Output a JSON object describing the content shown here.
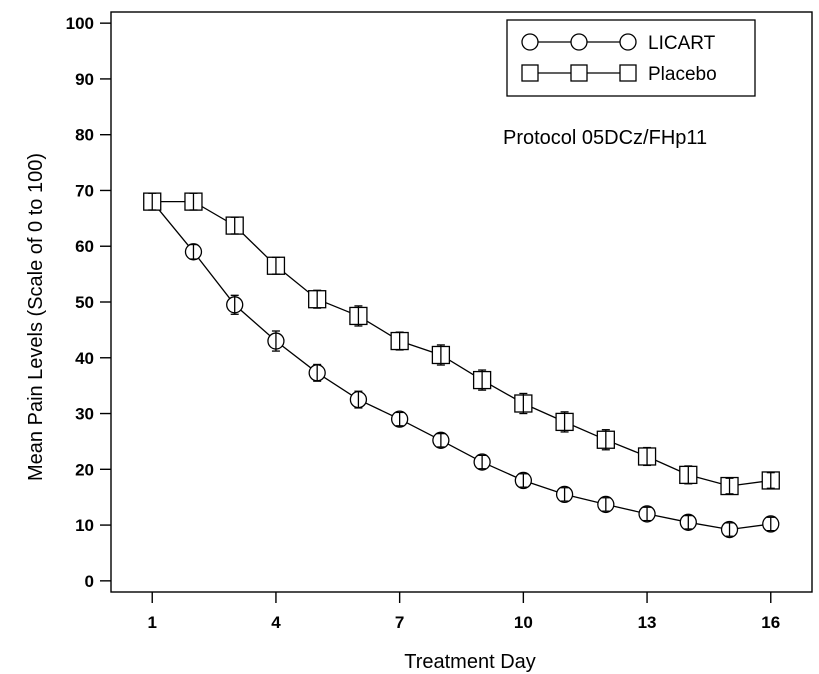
{
  "chart_data": {
    "type": "line",
    "xlabel": "Treatment Day",
    "ylabel": "Mean Pain Levels (Scale of 0 to 100)",
    "xlim": [
      0,
      17
    ],
    "ylim": [
      -2,
      102
    ],
    "xticks": [
      1,
      4,
      7,
      10,
      13,
      16
    ],
    "yticks": [
      0,
      10,
      20,
      30,
      40,
      50,
      60,
      70,
      80,
      90,
      100
    ],
    "annotation": "Protocol 05DCz/FHp11",
    "legend_position": "top-right",
    "grid": false,
    "x": [
      1,
      2,
      3,
      4,
      5,
      6,
      7,
      8,
      9,
      10,
      11,
      12,
      13,
      14,
      15,
      16
    ],
    "series": [
      {
        "name": "LICART",
        "marker": "circle",
        "values": [
          68,
          59,
          49.5,
          43,
          37.3,
          32.5,
          29,
          25.2,
          21.3,
          18,
          15.5,
          13.7,
          12,
          10.5,
          9.2,
          10.2
        ],
        "error": [
          1.2,
          1.3,
          1.7,
          1.8,
          1.5,
          1.5,
          1.2,
          1.2,
          1.2,
          1.2,
          1.2,
          1.2,
          1.2,
          1.2,
          1.2,
          1.2
        ]
      },
      {
        "name": "Placebo",
        "marker": "square",
        "values": [
          68,
          68,
          63.7,
          56.5,
          50.5,
          47.5,
          43,
          40.5,
          36,
          31.8,
          28.5,
          25.3,
          22.3,
          19,
          17,
          18
        ],
        "error": [
          1.5,
          1.5,
          1.5,
          1.5,
          1.6,
          1.8,
          1.6,
          1.8,
          1.8,
          1.8,
          1.8,
          1.8,
          1.6,
          1.6,
          1.4,
          1.4
        ]
      }
    ]
  }
}
